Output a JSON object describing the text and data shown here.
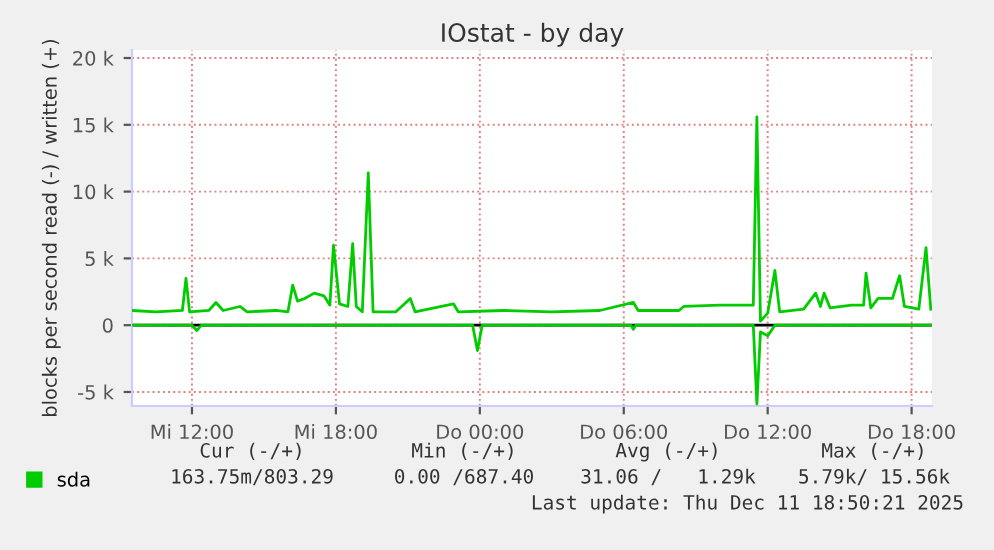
{
  "chart_data": {
    "type": "line",
    "title": "IOstat - by day",
    "ylabel": "blocks per second read (-) / written (+)",
    "xlim": [
      "2025-12-10T09:30",
      "2025-12-11T18:51"
    ],
    "ylim": [
      -6050,
      20600
    ],
    "xticks": [
      {
        "value": "2025-12-10T12:00",
        "label": "Mi 12:00"
      },
      {
        "value": "2025-12-10T18:00",
        "label": "Mi 18:00"
      },
      {
        "value": "2025-12-11T00:00",
        "label": "Do 00:00"
      },
      {
        "value": "2025-12-11T06:00",
        "label": "Do 06:00"
      },
      {
        "value": "2025-12-11T12:00",
        "label": "Do 12:00"
      },
      {
        "value": "2025-12-11T18:00",
        "label": "Do 18:00"
      }
    ],
    "yticks": [
      {
        "value": -5000,
        "label": "-5 k"
      },
      {
        "value": 0,
        "label": "0"
      },
      {
        "value": 5000,
        "label": "5 k"
      },
      {
        "value": 10000,
        "label": "10 k"
      },
      {
        "value": 15000,
        "label": "15 k"
      },
      {
        "value": 20000,
        "label": "20 k"
      }
    ],
    "grid": true,
    "legend": "bottom left",
    "marker": "none",
    "line_style": "solid",
    "ref_lines": [
      {
        "axis": "y",
        "value": 0,
        "color": "#000000"
      }
    ],
    "series": [
      {
        "name": "sda",
        "color": "#00cc00",
        "x": [
          "2025-12-10T09:30",
          "2025-12-10T10:30",
          "2025-12-10T11:36",
          "2025-12-10T11:45",
          "2025-12-10T11:54",
          "2025-12-10T12:42",
          "2025-12-10T13:00",
          "2025-12-10T13:18",
          "2025-12-10T14:00",
          "2025-12-10T14:18",
          "2025-12-10T15:30",
          "2025-12-10T16:00",
          "2025-12-10T16:12",
          "2025-12-10T16:24",
          "2025-12-10T16:42",
          "2025-12-10T17:06",
          "2025-12-10T17:30",
          "2025-12-10T17:45",
          "2025-12-10T17:54",
          "2025-12-10T18:09",
          "2025-12-10T18:30",
          "2025-12-10T18:42",
          "2025-12-10T18:51",
          "2025-12-10T19:06",
          "2025-12-10T19:21",
          "2025-12-10T19:33",
          "2025-12-10T20:30",
          "2025-12-10T21:06",
          "2025-12-10T21:18",
          "2025-12-10T22:54",
          "2025-12-10T23:06",
          "2025-12-11T01:00",
          "2025-12-11T03:00",
          "2025-12-11T05:00",
          "2025-12-11T06:24",
          "2025-12-11T06:36",
          "2025-12-11T08:18",
          "2025-12-11T08:30",
          "2025-12-11T10:00",
          "2025-12-11T11:24",
          "2025-12-11T11:33",
          "2025-12-11T11:42",
          "2025-12-11T12:00",
          "2025-12-11T12:18",
          "2025-12-11T12:30",
          "2025-12-11T13:30",
          "2025-12-11T14:00",
          "2025-12-11T14:12",
          "2025-12-11T14:21",
          "2025-12-11T14:36",
          "2025-12-11T15:30",
          "2025-12-11T16:00",
          "2025-12-11T16:06",
          "2025-12-11T16:18",
          "2025-12-11T16:36",
          "2025-12-11T17:12",
          "2025-12-11T17:30",
          "2025-12-11T17:42",
          "2025-12-11T18:18",
          "2025-12-11T18:36",
          "2025-12-11T18:48"
        ],
        "values": [
          1100,
          1000,
          1100,
          3500,
          1000,
          1100,
          1700,
          1100,
          1400,
          1000,
          1100,
          1000,
          3000,
          1800,
          2000,
          2400,
          2200,
          1500,
          6000,
          1600,
          1400,
          6100,
          1400,
          1000,
          11400,
          1000,
          1000,
          2000,
          1000,
          1600,
          1000,
          1100,
          1000,
          1100,
          1700,
          1100,
          1100,
          1400,
          1500,
          1500,
          15600,
          300,
          900,
          4100,
          1000,
          1200,
          2400,
          1400,
          2400,
          1300,
          1500,
          1500,
          3900,
          1300,
          2000,
          2000,
          3700,
          1400,
          1200,
          5800,
          1200
        ]
      },
      {
        "color": "#00cc00",
        "x": [
          "2025-12-10T09:30",
          "2025-12-10T12:00",
          "2025-12-10T12:12",
          "2025-12-10T12:24",
          "2025-12-10T23:42",
          "2025-12-10T23:54",
          "2025-12-11T00:06",
          "2025-12-11T06:18",
          "2025-12-11T06:24",
          "2025-12-11T06:30",
          "2025-12-11T11:24",
          "2025-12-11T11:33",
          "2025-12-11T11:42",
          "2025-12-11T12:00",
          "2025-12-11T12:18",
          "2025-12-11T18:51"
        ],
        "values": [
          0,
          0,
          -400,
          0,
          0,
          -1900,
          0,
          0,
          -300,
          0,
          0,
          -5900,
          -500,
          -800,
          0,
          0
        ]
      }
    ],
    "annotations": [
      "Cur (-/+)",
      "Min (-/+)",
      "Avg (-/+)",
      "Max (-/+)",
      "163.75m/803.29",
      "0.00 /687.40",
      "31.06 /   1.29k",
      "5.79k/ 15.56k",
      "Last update: Thu Dec 11 18:50:21 2025"
    ]
  }
}
